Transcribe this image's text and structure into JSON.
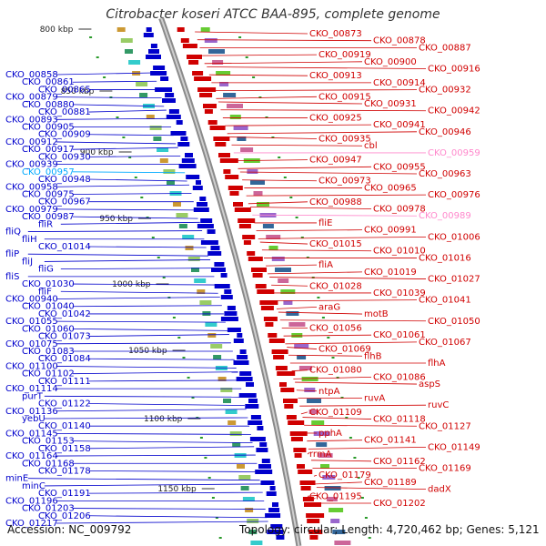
{
  "title": "Citrobacter koseri ATCC BAA-895, complete genome",
  "accession": "Accession: NC_009792",
  "summary": "Topology: circular; Length: 4,720,462 bp; Genes: 5,121",
  "colors": {
    "forward": "#d00000",
    "reverse": "#0000cc",
    "highlight_reverse": "#00aaff",
    "highlight_forward": "#ff88cc"
  },
  "kbp_ticks": [
    "800 kbp",
    "850 kbp",
    "900 kbp",
    "950 kbp",
    "1000 kbp",
    "1050 kbp",
    "1100 kbp",
    "1150 kbp"
  ],
  "left_labels": [
    "CKO_00858",
    "CKO_00861",
    "CKO_00865",
    "CKO_00879",
    "CKO_00880",
    "CKO_00881",
    "CKO_00893",
    "CKO_00905",
    "CKO_00909",
    "CKO_00912",
    "CKO_00917",
    "CKO_00930",
    "CKO_00939",
    "CKO_00957",
    "CKO_00948",
    "CKO_00958",
    "CKO_00975",
    "CKO_00967",
    "CKO_00979",
    "CKO_00987",
    "fliR",
    "fliQ",
    "fliH",
    "CKO_01014",
    "fliP",
    "fliJ",
    "fliG",
    "fliS",
    "CKO_01030",
    "fliF",
    "CKO_00940",
    "CKO_01040",
    "CKO_01042",
    "CKO_01055",
    "CKO_01060",
    "CKO_01073",
    "CKO_01075",
    "CKO_01083",
    "CKO_01084",
    "CKO_01100",
    "CKO_01102",
    "CKO_01111",
    "CKO_01114",
    "purT",
    "CKO_01122",
    "CKO_01136",
    "yebU",
    "CKO_01140",
    "CKO_01145",
    "CKO_01153",
    "CKO_01158",
    "CKO_01164",
    "CKO_01168",
    "CKO_01178",
    "minE",
    "minC",
    "CKO_01191",
    "CKO_01196",
    "CKO_01203",
    "CKO_01206",
    "CKO_01217"
  ],
  "right_labels": [
    "CKO_00873",
    "CKO_00878",
    "CKO_00887",
    "CKO_00919",
    "CKO_00900",
    "CKO_00916",
    "CKO_00913",
    "CKO_00914",
    "CKO_00932",
    "CKO_00915",
    "CKO_00931",
    "CKO_00942",
    "CKO_00925",
    "CKO_00941",
    "CKO_00946",
    "CKO_00935",
    "cbl",
    "CKO_00959",
    "CKO_00947",
    "CKO_00955",
    "CKO_00963",
    "CKO_00973",
    "CKO_00965",
    "CKO_00976",
    "CKO_00988",
    "CKO_00978",
    "CKO_00989",
    "fliE",
    "CKO_00991",
    "CKO_01006",
    "CKO_01015",
    "CKO_01010",
    "CKO_01016",
    "fliA",
    "CKO_01019",
    "CKO_01027",
    "CKO_01028",
    "CKO_01039",
    "CKO_01041",
    "araG",
    "motB",
    "CKO_01050",
    "CKO_01056",
    "CKO_01061",
    "CKO_01067",
    "CKO_01069",
    "flhB",
    "flhA",
    "CKO_01080",
    "CKO_01086",
    "aspS",
    "ntpA",
    "ruvA",
    "ruvC",
    "CKO_01109",
    "CKO_01118",
    "CKO_01127",
    "pphA",
    "CKO_01141",
    "CKO_01149",
    "rrmA",
    "CKO_01162",
    "CKO_01169",
    "CKO_01179",
    "CKO_01189",
    "dadX",
    "CKO_01195",
    "CKO_01202"
  ]
}
